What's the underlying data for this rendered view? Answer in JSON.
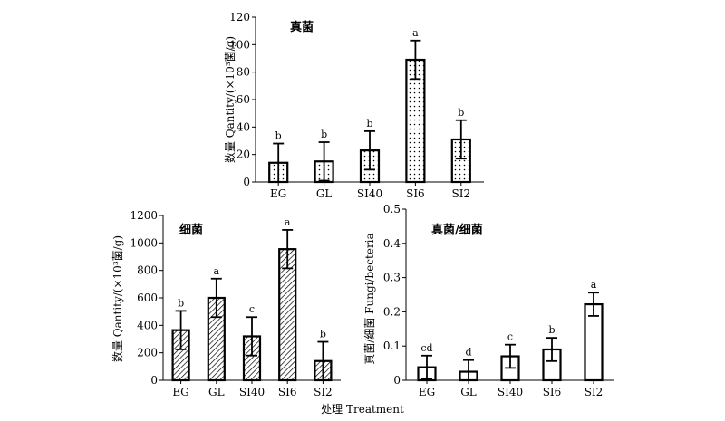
{
  "xlabel_shared": "处理 Treatment",
  "chart_data": [
    {
      "type": "bar",
      "title": "真菌",
      "ylabel": "数量 Qantity/(×10³菌/g)",
      "xlabel": "",
      "categories": [
        "EG",
        "GL",
        "SI40",
        "SI6",
        "SI2"
      ],
      "values": [
        14,
        15,
        23,
        89,
        31
      ],
      "errors": [
        14,
        14,
        14,
        14,
        14
      ],
      "letters": [
        "b",
        "b",
        "b",
        "a",
        "b"
      ],
      "ylim": [
        0,
        120
      ],
      "yticks": [
        "0",
        "20",
        "40",
        "60",
        "80",
        "100",
        "120"
      ],
      "fill": "dots",
      "grid": false,
      "legend": "none"
    },
    {
      "type": "bar",
      "title": "细菌",
      "ylabel": "数量 Qantity/(×10³菌/g)",
      "xlabel": "",
      "categories": [
        "EG",
        "GL",
        "SI40",
        "SI6",
        "SI2"
      ],
      "values": [
        365,
        600,
        320,
        955,
        140
      ],
      "errors": [
        140,
        140,
        140,
        140,
        140
      ],
      "letters": [
        "b",
        "a",
        "c",
        "a",
        "b"
      ],
      "ylim": [
        0,
        1200
      ],
      "yticks": [
        "0",
        "200",
        "400",
        "600",
        "800",
        "1000",
        "1200"
      ],
      "fill": "hatch",
      "grid": false,
      "legend": "none"
    },
    {
      "type": "bar",
      "title": "真菌/细菌",
      "ylabel": "真菌/细菌 Fungi/becteria",
      "xlabel": "",
      "categories": [
        "EG",
        "GL",
        "SI40",
        "SI6",
        "SI2"
      ],
      "values": [
        0.038,
        0.025,
        0.07,
        0.09,
        0.222
      ],
      "errors": [
        0.034,
        0.034,
        0.034,
        0.034,
        0.034
      ],
      "letters": [
        "cd",
        "d",
        "c",
        "b",
        "a"
      ],
      "ylim": [
        0,
        0.5
      ],
      "yticks": [
        "0",
        "0.1",
        "0.2",
        "0.3",
        "0.4",
        "0.5"
      ],
      "fill": "none",
      "grid": false,
      "legend": "none"
    }
  ]
}
